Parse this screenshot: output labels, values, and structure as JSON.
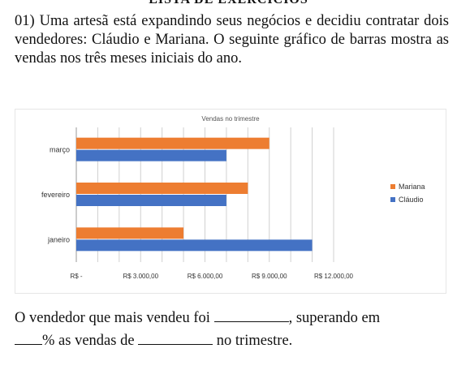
{
  "header": {
    "title": "LISTA DE EXERCÍCIOS"
  },
  "question": {
    "number": "01)",
    "text": "Uma artesã está expandindo seus negócios e decidiu contratar dois vendedores: Cláudio e Mariana. O seguinte gráfico de barras mostra as vendas nos três meses iniciais do ano."
  },
  "answer": {
    "part1": "O vendedor que mais vendeu foi",
    "part2": ", superando em",
    "part3": "% as vendas de",
    "part4": "no trimestre."
  },
  "chart_data": {
    "type": "bar",
    "orientation": "horizontal",
    "title": "Vendas no trimestre",
    "categories": [
      "março",
      "fevereiro",
      "janeiro"
    ],
    "series": [
      {
        "name": "Mariana",
        "color": "#ed7d31",
        "values": [
          9000,
          8000,
          5000
        ]
      },
      {
        "name": "Cláudio",
        "color": "#4472c4",
        "values": [
          7000,
          7000,
          11000
        ]
      }
    ],
    "xlim": [
      0,
      12000
    ],
    "xticks": [
      0,
      3000,
      6000,
      9000,
      12000
    ],
    "xtick_labels": [
      "R$ -",
      "R$ 3.000,00",
      "R$ 6.000,00",
      "R$ 9.000,00",
      "R$ 12.000,00"
    ],
    "grid": true,
    "legend": "right"
  }
}
